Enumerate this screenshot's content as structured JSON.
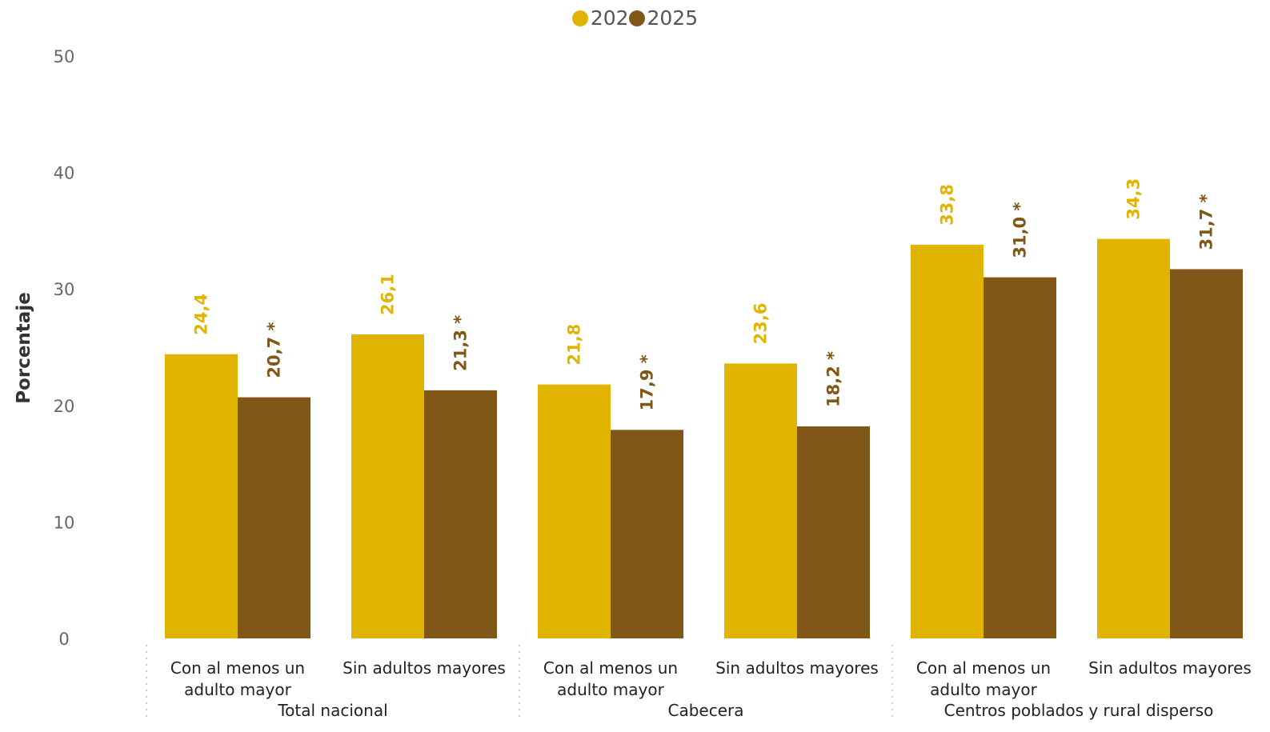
{
  "chart_data": {
    "type": "bar",
    "ylabel": "Porcentaje",
    "ylim": [
      0,
      50
    ],
    "yticks": [
      0,
      10,
      20,
      30,
      40,
      50
    ],
    "groups": [
      {
        "label": "Total nacional",
        "categories": [
          "Con al menos un adulto mayor",
          "Sin adultos mayores"
        ]
      },
      {
        "label": "Cabecera",
        "categories": [
          "Con al menos un adulto mayor",
          "Sin adultos mayores"
        ]
      },
      {
        "label": "Centros poblados y rural disperso",
        "categories": [
          "Con al menos un adulto mayor",
          "Sin adultos mayores"
        ]
      }
    ],
    "categories": [
      "Con al menos un adulto mayor",
      "Sin adultos mayores",
      "Con al menos un adulto mayor",
      "Sin adultos mayores",
      "Con al menos un adulto mayor",
      "Sin adultos mayores"
    ],
    "series": [
      {
        "name": "2024",
        "color": "#E0B400",
        "values": [
          24.4,
          26.1,
          21.8,
          23.6,
          33.8,
          34.3
        ],
        "labels": [
          "24,4",
          "26,1",
          "21,8",
          "23,6",
          "33,8",
          "34,3"
        ]
      },
      {
        "name": "2025",
        "color": "#805716",
        "values": [
          20.7,
          21.3,
          17.9,
          18.2,
          31.0,
          31.7
        ],
        "labels": [
          "20,7 *",
          "21,3 *",
          "17,9 *",
          "18,2 *",
          "31,0 *",
          "31,7 *"
        ]
      }
    ],
    "legend_position": "top-center",
    "grid": false
  }
}
